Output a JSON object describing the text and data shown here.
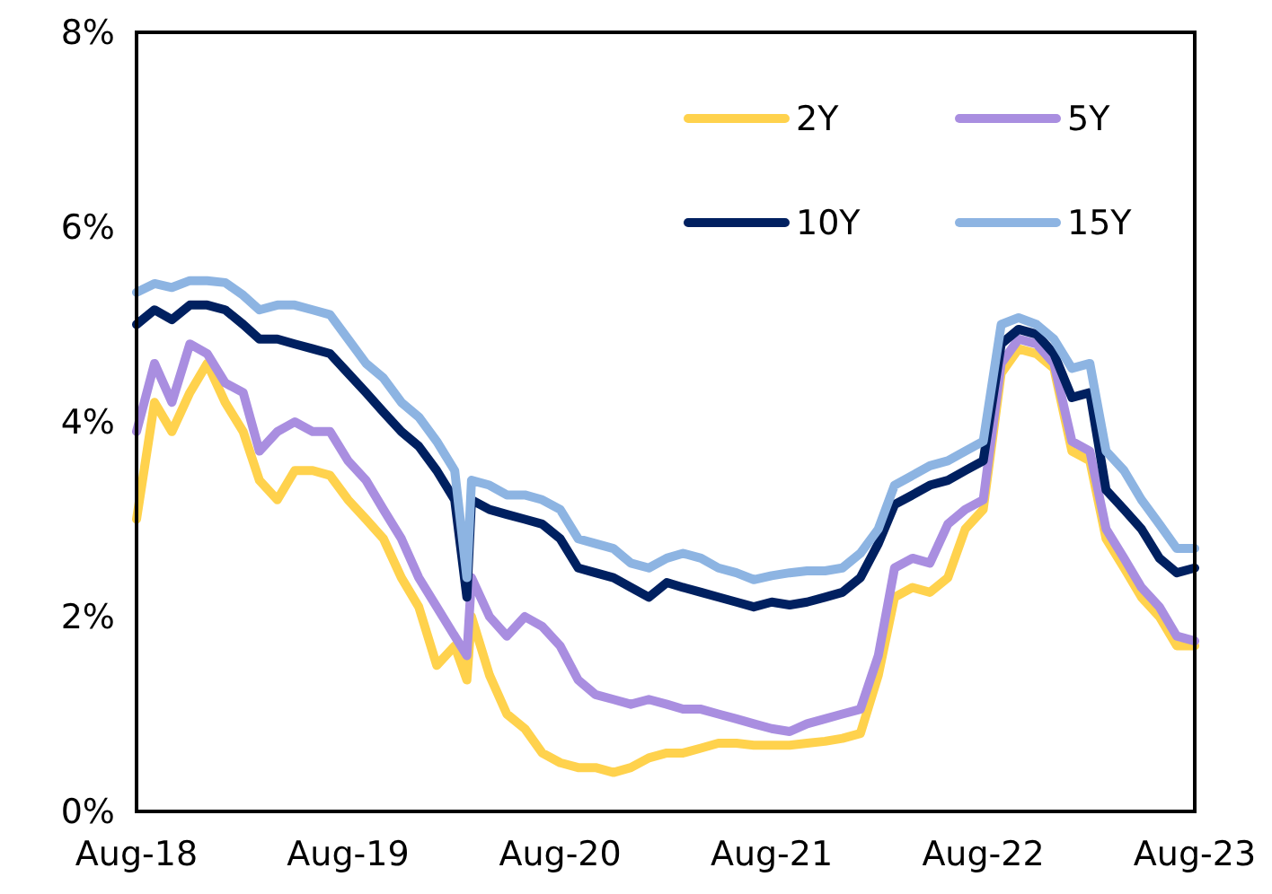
{
  "chart_data": {
    "type": "line",
    "x": [
      "2018-08-01",
      "2018-09-01",
      "2018-10-01",
      "2018-11-01",
      "2018-12-01",
      "2019-01-01",
      "2019-02-01",
      "2019-03-01",
      "2019-04-01",
      "2019-05-01",
      "2019-06-01",
      "2019-07-01",
      "2019-08-01",
      "2019-09-01",
      "2019-10-01",
      "2019-11-01",
      "2019-12-01",
      "2020-01-01",
      "2020-02-01",
      "2020-02-22",
      "2020-03-01",
      "2020-04-01",
      "2020-05-01",
      "2020-06-01",
      "2020-07-01",
      "2020-08-01",
      "2020-09-01",
      "2020-10-01",
      "2020-11-01",
      "2020-12-01",
      "2021-01-01",
      "2021-02-01",
      "2021-03-01",
      "2021-04-01",
      "2021-05-01",
      "2021-06-01",
      "2021-07-01",
      "2021-08-01",
      "2021-09-01",
      "2021-10-01",
      "2021-11-01",
      "2021-12-01",
      "2022-01-01",
      "2022-02-01",
      "2022-03-01",
      "2022-04-01",
      "2022-05-01",
      "2022-06-01",
      "2022-07-01",
      "2022-08-01",
      "2022-09-01",
      "2022-10-01",
      "2022-11-01",
      "2022-12-01",
      "2023-01-01",
      "2023-02-01",
      "2023-03-01",
      "2023-04-01",
      "2023-05-01",
      "2023-06-01",
      "2023-07-01",
      "2023-08-01"
    ],
    "series": [
      {
        "name": "2Y",
        "color": "#ffd24d",
        "values": [
          3.0,
          4.2,
          3.9,
          4.3,
          4.6,
          4.2,
          3.9,
          3.4,
          3.2,
          3.5,
          3.5,
          3.45,
          3.2,
          3.0,
          2.8,
          2.4,
          2.1,
          1.5,
          1.7,
          1.35,
          2.0,
          1.4,
          1.0,
          0.85,
          0.6,
          0.5,
          0.45,
          0.45,
          0.4,
          0.45,
          0.55,
          0.6,
          0.6,
          0.65,
          0.7,
          0.7,
          0.68,
          0.68,
          0.68,
          0.7,
          0.72,
          0.75,
          0.8,
          1.4,
          2.2,
          2.3,
          2.25,
          2.4,
          2.9,
          3.1,
          4.5,
          4.75,
          4.7,
          4.55,
          3.7,
          3.6,
          2.8,
          2.5,
          2.2,
          2.0,
          1.7,
          1.7
        ]
      },
      {
        "name": "5Y",
        "color": "#a98ee0",
        "values": [
          3.9,
          4.6,
          4.2,
          4.8,
          4.7,
          4.4,
          4.3,
          3.7,
          3.9,
          4.0,
          3.9,
          3.9,
          3.6,
          3.4,
          3.1,
          2.8,
          2.4,
          2.1,
          1.8,
          1.6,
          2.4,
          2.0,
          1.8,
          2.0,
          1.9,
          1.7,
          1.35,
          1.2,
          1.15,
          1.1,
          1.15,
          1.1,
          1.05,
          1.05,
          1.0,
          0.95,
          0.9,
          0.85,
          0.82,
          0.9,
          0.95,
          1.0,
          1.05,
          1.6,
          2.5,
          2.6,
          2.55,
          2.95,
          3.1,
          3.2,
          4.6,
          4.85,
          4.8,
          4.6,
          3.8,
          3.7,
          2.9,
          2.6,
          2.3,
          2.1,
          1.8,
          1.75
        ]
      },
      {
        "name": "10Y",
        "color": "#002060",
        "values": [
          5.0,
          5.15,
          5.05,
          5.2,
          5.2,
          5.15,
          5.0,
          4.85,
          4.85,
          4.8,
          4.75,
          4.7,
          4.5,
          4.3,
          4.1,
          3.9,
          3.75,
          3.5,
          3.2,
          2.2,
          3.2,
          3.1,
          3.05,
          3.0,
          2.95,
          2.8,
          2.5,
          2.45,
          2.4,
          2.3,
          2.2,
          2.35,
          2.3,
          2.25,
          2.2,
          2.15,
          2.1,
          2.15,
          2.12,
          2.15,
          2.2,
          2.25,
          2.4,
          2.75,
          3.15,
          3.25,
          3.35,
          3.4,
          3.5,
          3.6,
          4.8,
          4.95,
          4.9,
          4.7,
          4.25,
          4.3,
          3.3,
          3.1,
          2.9,
          2.6,
          2.45,
          2.5
        ]
      },
      {
        "name": "15Y",
        "color": "#8db4e2",
        "values": [
          5.33,
          5.42,
          5.38,
          5.45,
          5.45,
          5.43,
          5.3,
          5.15,
          5.2,
          5.2,
          5.15,
          5.1,
          4.85,
          4.6,
          4.45,
          4.2,
          4.05,
          3.8,
          3.5,
          2.4,
          3.4,
          3.35,
          3.25,
          3.25,
          3.2,
          3.1,
          2.8,
          2.75,
          2.7,
          2.55,
          2.5,
          2.6,
          2.65,
          2.6,
          2.5,
          2.45,
          2.38,
          2.42,
          2.45,
          2.47,
          2.47,
          2.5,
          2.65,
          2.9,
          3.35,
          3.45,
          3.55,
          3.6,
          3.7,
          3.8,
          5.0,
          5.07,
          5.0,
          4.85,
          4.55,
          4.6,
          3.7,
          3.5,
          3.2,
          2.95,
          2.7,
          2.7
        ]
      }
    ],
    "xlim": [
      "2018-08-01",
      "2023-08-01"
    ],
    "xticks": [
      {
        "value": "2018-08-01",
        "label": "Aug-18"
      },
      {
        "value": "2019-08-01",
        "label": "Aug-19"
      },
      {
        "value": "2020-08-01",
        "label": "Aug-20"
      },
      {
        "value": "2021-08-01",
        "label": "Aug-21"
      },
      {
        "value": "2022-08-01",
        "label": "Aug-22"
      },
      {
        "value": "2023-08-01",
        "label": "Aug-23"
      }
    ],
    "ylim": [
      0,
      8
    ],
    "yticks": [
      {
        "value": 0,
        "label": "0%"
      },
      {
        "value": 2,
        "label": "2%"
      },
      {
        "value": 4,
        "label": "4%"
      },
      {
        "value": 6,
        "label": "6%"
      },
      {
        "value": 8,
        "label": "8%"
      }
    ],
    "legend": "top right",
    "grid": false,
    "line_style": "solid",
    "marker": "none"
  }
}
